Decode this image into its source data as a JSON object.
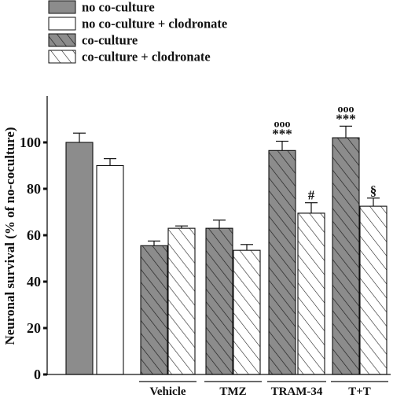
{
  "chart_data": {
    "type": "bar",
    "ylabel": "Neuronal survival (% of no-coculture)",
    "ylim": [
      0,
      120
    ],
    "yticks": [
      0,
      20,
      40,
      60,
      80,
      100
    ],
    "grid": false,
    "legend_placement": "top-left",
    "legend": [
      {
        "label": "no co-culture",
        "fill": "solid",
        "color": "#8c8c8c"
      },
      {
        "label": "no co-culture + clodronate",
        "fill": "open",
        "color": "#ffffff"
      },
      {
        "label": "co-culture",
        "fill": "dense-hatch",
        "color": "#8c8c8c"
      },
      {
        "label": "co-culture + clodronate",
        "fill": "sparse-hatch",
        "color": "#ffffff"
      }
    ],
    "groups": [
      "Vehicle",
      "TMZ",
      "TRAM-34",
      "T+T"
    ],
    "bars": [
      {
        "group": "",
        "series": "no co-culture",
        "value": 100,
        "error": 4
      },
      {
        "group": "",
        "series": "no co-culture + clodronate",
        "value": 90,
        "error": 3
      },
      {
        "group": "Vehicle",
        "series": "co-culture",
        "value": 55.5,
        "error": 2
      },
      {
        "group": "Vehicle",
        "series": "co-culture + clodronate",
        "value": 63,
        "error": 1
      },
      {
        "group": "TMZ",
        "series": "co-culture",
        "value": 63,
        "error": 3.5
      },
      {
        "group": "TMZ",
        "series": "co-culture + clodronate",
        "value": 53.5,
        "error": 2.5
      },
      {
        "group": "TRAM-34",
        "series": "co-culture",
        "value": 96.5,
        "error": 4,
        "marks": [
          "ooo",
          "***"
        ]
      },
      {
        "group": "TRAM-34",
        "series": "co-culture + clodronate",
        "value": 69.5,
        "error": 4.5,
        "marks": [
          "#"
        ]
      },
      {
        "group": "T+T",
        "series": "co-culture",
        "value": 102,
        "error": 5,
        "marks": [
          "ooo",
          "***"
        ]
      },
      {
        "group": "T+T",
        "series": "co-culture + clodronate",
        "value": 72.5,
        "error": 3.5,
        "marks": [
          "§"
        ]
      }
    ]
  },
  "colors": {
    "gray_fill": "#8c8c8c",
    "white_fill": "#ffffff",
    "ink": "#111111"
  }
}
